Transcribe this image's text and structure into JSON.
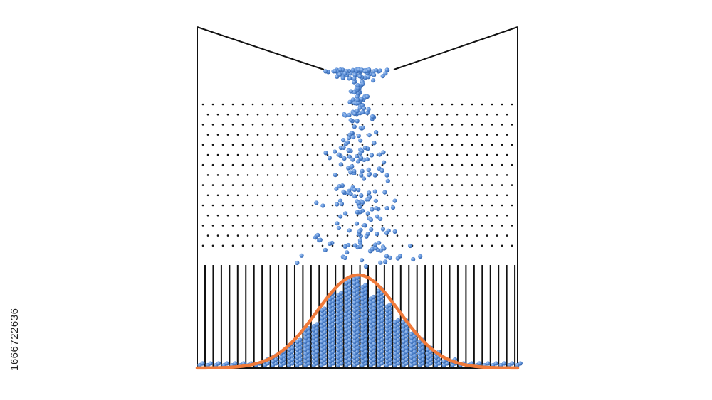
{
  "image_id": "1666722636"
}
